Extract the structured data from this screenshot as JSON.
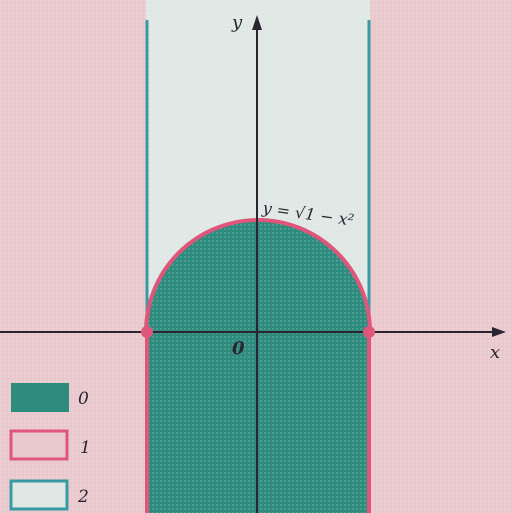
{
  "axes": {
    "x_label": "x",
    "y_label": "y",
    "origin_label": "0"
  },
  "curve_label": "y = √1 − x²",
  "legend": [
    {
      "label": "0",
      "color": "#2e8c7e"
    },
    {
      "label": "1",
      "color": "#e9c9cd"
    },
    {
      "label": "2",
      "color": "#dfe8e4"
    }
  ],
  "colors": {
    "region_0": "#2e8c7e",
    "region_1": "#e9c9cd",
    "region_2": "#dfe8e4",
    "boundary_pink": "#e0567a",
    "boundary_teal": "#3a9aa4",
    "axis": "#2a2530"
  }
}
